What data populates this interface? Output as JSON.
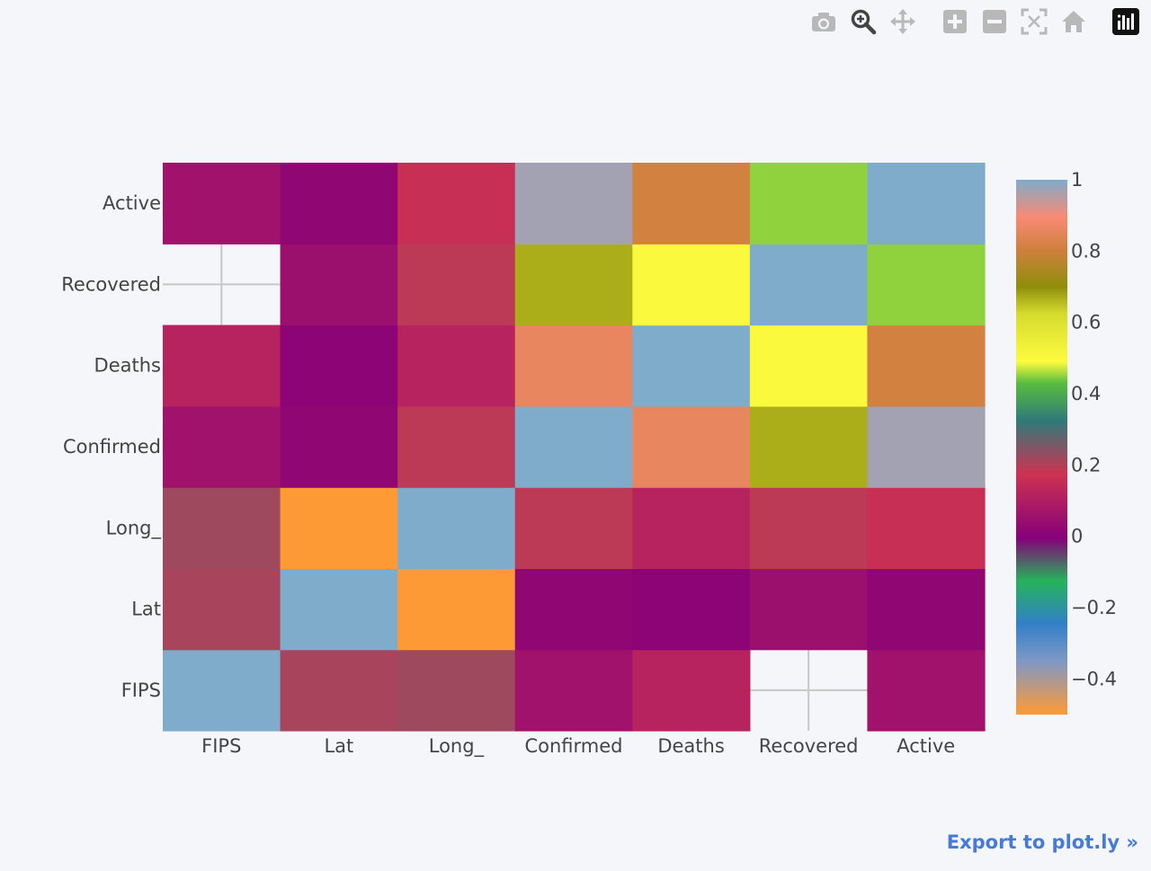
{
  "modebar": {
    "buttons": [
      {
        "name": "camera-icon"
      },
      {
        "name": "zoom-icon"
      },
      {
        "name": "pan-icon"
      },
      {
        "name": "zoom-in-icon"
      },
      {
        "name": "zoom-out-icon"
      },
      {
        "name": "autoscale-icon"
      },
      {
        "name": "reset-axes-icon"
      },
      {
        "name": "plotly-logo-icon"
      }
    ]
  },
  "export_link": "Export to plot.ly »",
  "chart_data": {
    "type": "heatmap",
    "title": "",
    "x": [
      "FIPS",
      "Lat",
      "Long_",
      "Confirmed",
      "Deaths",
      "Recovered",
      "Active"
    ],
    "y": [
      "FIPS",
      "Lat",
      "Long_",
      "Confirmed",
      "Deaths",
      "Recovered",
      "Active"
    ],
    "z": [
      [
        1.0,
        0.21,
        0.22,
        0.06,
        0.12,
        null,
        0.06
      ],
      [
        0.21,
        1.0,
        -0.5,
        0.02,
        0.01,
        0.05,
        0.02
      ],
      [
        0.22,
        -0.5,
        1.0,
        0.19,
        0.12,
        0.19,
        0.16
      ],
      [
        0.06,
        0.02,
        0.19,
        1.0,
        0.86,
        0.67,
        0.97
      ],
      [
        0.12,
        0.01,
        0.12,
        0.86,
        1.0,
        0.5,
        0.81
      ],
      [
        null,
        0.05,
        0.19,
        0.67,
        0.5,
        1.0,
        0.45
      ],
      [
        0.06,
        0.02,
        0.16,
        0.97,
        0.81,
        0.45,
        1.0
      ]
    ],
    "zmin": -0.5,
    "zmax": 1.0,
    "colorbar": {
      "ticks": [
        "1",
        "0.8",
        "0.6",
        "0.4",
        "0.2",
        "0",
        "−0.2",
        "−0.4"
      ],
      "tickvals": [
        1,
        0.8,
        0.6,
        0.4,
        0.2,
        0,
        -0.2,
        -0.4
      ]
    },
    "colorscale": [
      [
        0.0,
        "#fe9a35"
      ],
      [
        0.1,
        "#7f98c6"
      ],
      [
        0.17,
        "#3280c8"
      ],
      [
        0.25,
        "#26b35c"
      ],
      [
        0.33,
        "#860079"
      ],
      [
        0.45,
        "#cd3352"
      ],
      [
        0.55,
        "#2f7b79"
      ],
      [
        0.62,
        "#59bd3d"
      ],
      [
        0.66,
        "#fdfb3e"
      ],
      [
        0.75,
        "#d5db2d"
      ],
      [
        0.8,
        "#8f8e0b"
      ],
      [
        0.87,
        "#d0803e"
      ],
      [
        0.93,
        "#f88a74"
      ],
      [
        1.0,
        "#7faccb"
      ]
    ],
    "grid": true
  }
}
